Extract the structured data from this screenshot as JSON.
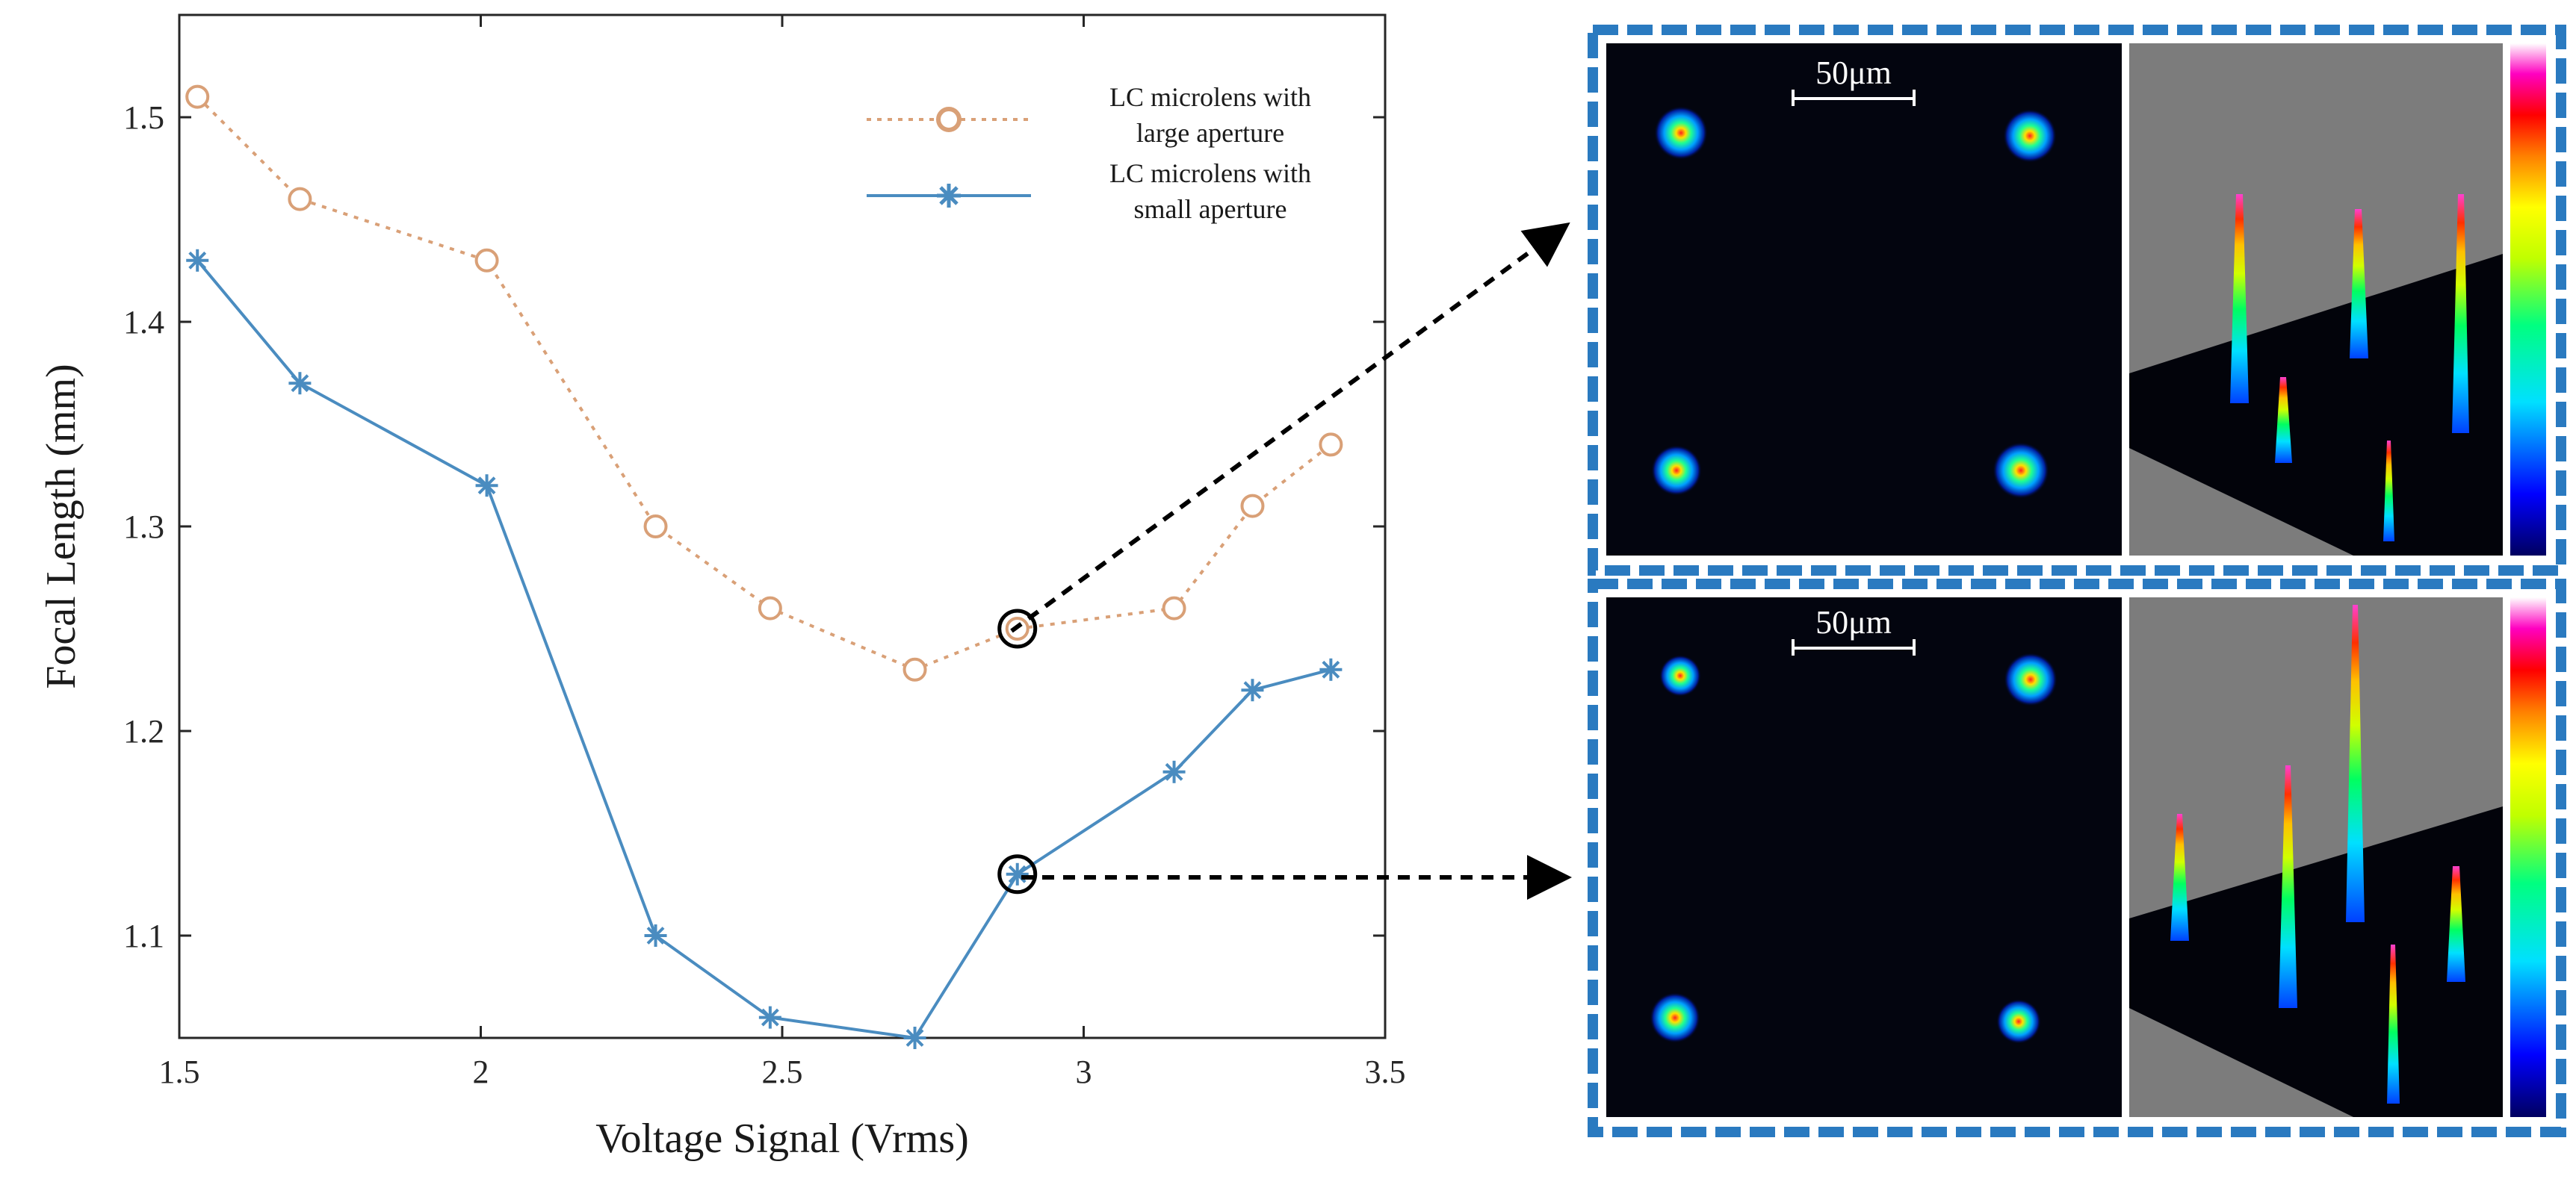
{
  "chart_data": {
    "type": "line",
    "xlabel": "Voltage Signal (Vrms)",
    "ylabel": "Focal Length (mm)",
    "xlim": [
      1.5,
      3.5
    ],
    "ylim": [
      1.05,
      1.55
    ],
    "xticks": [
      1.5,
      2,
      2.5,
      3,
      3.5
    ],
    "xtick_labels": [
      "1.5",
      "2",
      "2.5",
      "3",
      "3.5"
    ],
    "yticks": [
      1.1,
      1.2,
      1.3,
      1.4,
      1.5
    ],
    "ytick_labels": [
      "1.1",
      "1.2",
      "1.3",
      "1.4",
      "1.5"
    ],
    "grid": false,
    "legend_position": "top-right",
    "series": [
      {
        "name": "LC microlens with large aperture",
        "legend_lines": [
          "LC microlens with",
          "large aperture"
        ],
        "color": "#D9A077",
        "line_style": "dotted",
        "marker": "circle",
        "x": [
          1.53,
          1.7,
          2.01,
          2.29,
          2.48,
          2.72,
          2.89,
          3.15,
          3.28,
          3.41
        ],
        "y": [
          1.51,
          1.46,
          1.43,
          1.3,
          1.26,
          1.23,
          1.25,
          1.26,
          1.31,
          1.34
        ]
      },
      {
        "name": "LC microlens with small aperture",
        "legend_lines": [
          "LC microlens with",
          "small aperture"
        ],
        "color": "#4A8CC0",
        "line_style": "solid",
        "marker": "asterisk",
        "x": [
          1.53,
          1.7,
          2.01,
          2.29,
          2.48,
          2.72,
          2.89,
          3.15,
          3.28,
          3.41
        ],
        "y": [
          1.43,
          1.37,
          1.32,
          1.1,
          1.06,
          1.05,
          1.13,
          1.18,
          1.22,
          1.23
        ]
      }
    ],
    "highlighted_points": [
      {
        "series": 0,
        "x": 2.89,
        "y": 1.25,
        "target_panel": "top"
      },
      {
        "series": 1,
        "x": 2.89,
        "y": 1.13,
        "target_panel": "bottom"
      }
    ],
    "insets": [
      {
        "position": "top",
        "scale_bar_label": "50μm"
      },
      {
        "position": "bottom",
        "scale_bar_label": "50μm"
      }
    ]
  },
  "colors": {
    "inset_border": "#2A7AC0",
    "arrow": "#000000",
    "axis": "#262626",
    "surface_gray": "#7C7C7C"
  }
}
